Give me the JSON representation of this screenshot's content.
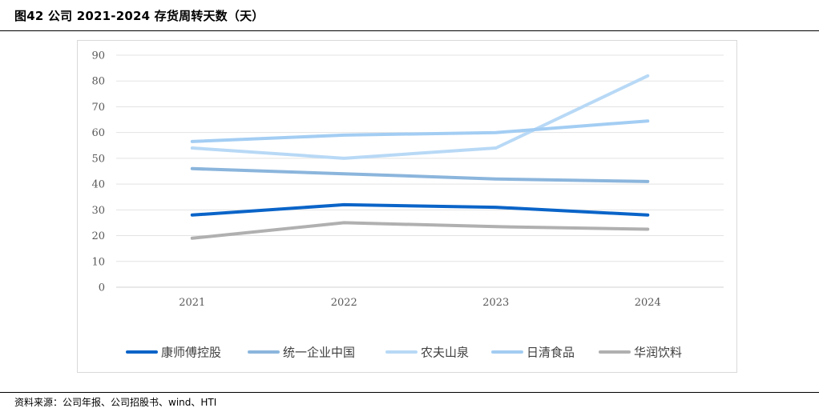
{
  "header": {
    "title": "图42 公司 2021-2024 存货周转天数（天）"
  },
  "footer": {
    "source": "资料来源：公司年报、公司招股书、wind、HTI"
  },
  "chart_data": {
    "type": "line",
    "x": [
      "2021",
      "2022",
      "2023",
      "2024"
    ],
    "ylim": [
      0,
      90
    ],
    "yticks": [
      0,
      10,
      20,
      30,
      40,
      50,
      60,
      70,
      80,
      90
    ],
    "grid": true,
    "legend_position": "bottom",
    "series": [
      {
        "name": "康师傅控股",
        "color": "#0a64c8",
        "values": [
          28,
          32,
          31,
          28
        ]
      },
      {
        "name": "统一企业中国",
        "color": "#8bb5dc",
        "values": [
          46,
          44,
          42,
          41
        ]
      },
      {
        "name": "农夫山泉",
        "color": "#b8d9f6",
        "values": [
          54,
          50,
          54,
          82
        ]
      },
      {
        "name": "日清食品",
        "color": "#a3cdf3",
        "values": [
          56.5,
          59,
          60,
          64.5
        ]
      },
      {
        "name": "华润饮料",
        "color": "#b0b0b0",
        "values": [
          19,
          25,
          23.5,
          22.5
        ]
      }
    ]
  }
}
